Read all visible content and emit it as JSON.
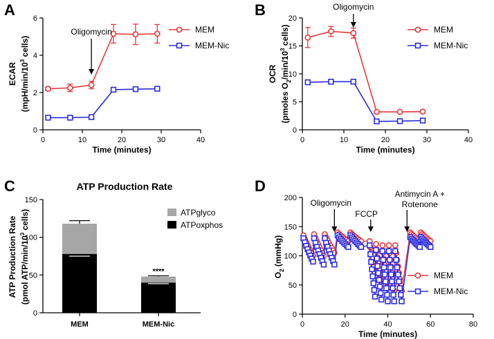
{
  "colors": {
    "mem": "#e8373a",
    "memnic": "#2a2ae0",
    "glyco": "#a6a6a6",
    "oxphos": "#000000"
  },
  "chart_data": [
    {
      "panel": "A",
      "type": "line",
      "xlabel": "Time (minutes)",
      "ylabel_line1": "ECAR",
      "ylabel_line2": "(mpH/min/10",
      "ylabel_sup": "3",
      "ylabel_tail": " cells)",
      "xlim": [
        0,
        40
      ],
      "ylim": [
        0,
        6
      ],
      "xticks": [
        0,
        10,
        20,
        30,
        40
      ],
      "yticks": [
        0,
        2,
        4,
        6
      ],
      "legend_position": "top-right",
      "annotation": {
        "text": "Oligomycin",
        "x": 12.3
      },
      "series": [
        {
          "name": "MEM",
          "marker": "circle",
          "x": [
            1.3,
            6.9,
            12.3,
            17.9,
            23.5,
            29.0
          ],
          "y": [
            2.2,
            2.25,
            2.4,
            5.15,
            5.12,
            5.15
          ],
          "err": [
            0.1,
            0.2,
            0.2,
            0.5,
            0.55,
            0.5
          ]
        },
        {
          "name": "MEM-Nic",
          "marker": "square",
          "x": [
            1.3,
            6.9,
            12.3,
            17.9,
            23.5,
            29.0
          ],
          "y": [
            0.65,
            0.65,
            0.68,
            2.15,
            2.18,
            2.2
          ],
          "err": [
            0,
            0,
            0,
            0,
            0,
            0
          ]
        }
      ]
    },
    {
      "panel": "B",
      "type": "line",
      "xlabel": "Time (minutes)",
      "ylabel_line1": "OCR",
      "ylabel_line2": "(pmoles O",
      "ylabel_sub": "2",
      "ylabel_mid": "/min/10",
      "ylabel_sup": "3",
      "ylabel_tail": " cells)",
      "xlim": [
        0,
        40
      ],
      "ylim": [
        0,
        20
      ],
      "xticks": [
        0,
        10,
        20,
        30,
        40
      ],
      "yticks": [
        0,
        5,
        10,
        15,
        20
      ],
      "legend_position": "top-right",
      "annotation": {
        "text": "Oligomycin",
        "x": 12.3
      },
      "series": [
        {
          "name": "MEM",
          "marker": "circle",
          "x": [
            1.3,
            6.9,
            12.3,
            17.9,
            23.5,
            29.0
          ],
          "y": [
            16.5,
            17.6,
            17.3,
            3.2,
            3.2,
            3.25
          ],
          "err": [
            1.8,
            0.9,
            0.9,
            0.15,
            0.1,
            0.1
          ]
        },
        {
          "name": "MEM-Nic",
          "marker": "square",
          "x": [
            1.3,
            6.9,
            12.3,
            17.9,
            23.5,
            29.0
          ],
          "y": [
            8.5,
            8.6,
            8.6,
            1.5,
            1.55,
            1.65
          ],
          "err": [
            0,
            0,
            0,
            0,
            0,
            0
          ]
        }
      ]
    },
    {
      "panel": "C",
      "type": "bar",
      "title": "ATP Production Rate",
      "ylabel_line1": "ATP Production Rate",
      "ylabel_line2": "(pmol ATP/min/10",
      "ylabel_sup": "3",
      "ylabel_tail": " cells)",
      "categories": [
        "MEM",
        "MEM-Nic"
      ],
      "ylim": [
        0,
        150
      ],
      "yticks": [
        0,
        50,
        100,
        150
      ],
      "legend_position": "top-right",
      "significance": "****",
      "series": [
        {
          "name": "ATPoxphos",
          "values": [
            78,
            40
          ],
          "err": [
            3,
            1.5
          ]
        },
        {
          "name": "ATPglyco",
          "values": [
            40,
            8
          ],
          "err": [
            4,
            1
          ]
        }
      ]
    },
    {
      "panel": "D",
      "type": "line",
      "xlabel": "Time (minutes)",
      "ylabel": "O",
      "ylabel_sub": "2",
      "ylabel_tail": " (mmHg)",
      "xlim": [
        0,
        80
      ],
      "ylim": [
        0,
        200
      ],
      "xticks": [
        0,
        20,
        40,
        60,
        80
      ],
      "yticks": [
        0,
        50,
        100,
        150,
        200
      ],
      "legend_position": "bottom-right",
      "annotations": [
        {
          "text": "Oligomycin",
          "x": 15
        },
        {
          "text": "FCCP",
          "x": 32
        },
        {
          "text": "Antimycin A +",
          "text2": "Rotenone",
          "x": 49
        }
      ],
      "series": [
        {
          "name": "MEM",
          "marker": "circle",
          "y_high": [
            135,
            137,
            137,
            140,
            140,
            125,
            120,
            118,
            118,
            118,
            140,
            140
          ],
          "y_low": [
            100,
            100,
            105,
            125,
            125,
            65,
            50,
            45,
            40,
            40,
            125,
            125
          ]
        },
        {
          "name": "MEM-Nic",
          "marker": "square",
          "y_high": [
            130,
            130,
            130,
            135,
            135,
            118,
            110,
            108,
            108,
            108,
            132,
            132
          ],
          "y_low": [
            90,
            85,
            85,
            115,
            115,
            30,
            25,
            22,
            22,
            22,
            115,
            115
          ]
        }
      ]
    }
  ]
}
